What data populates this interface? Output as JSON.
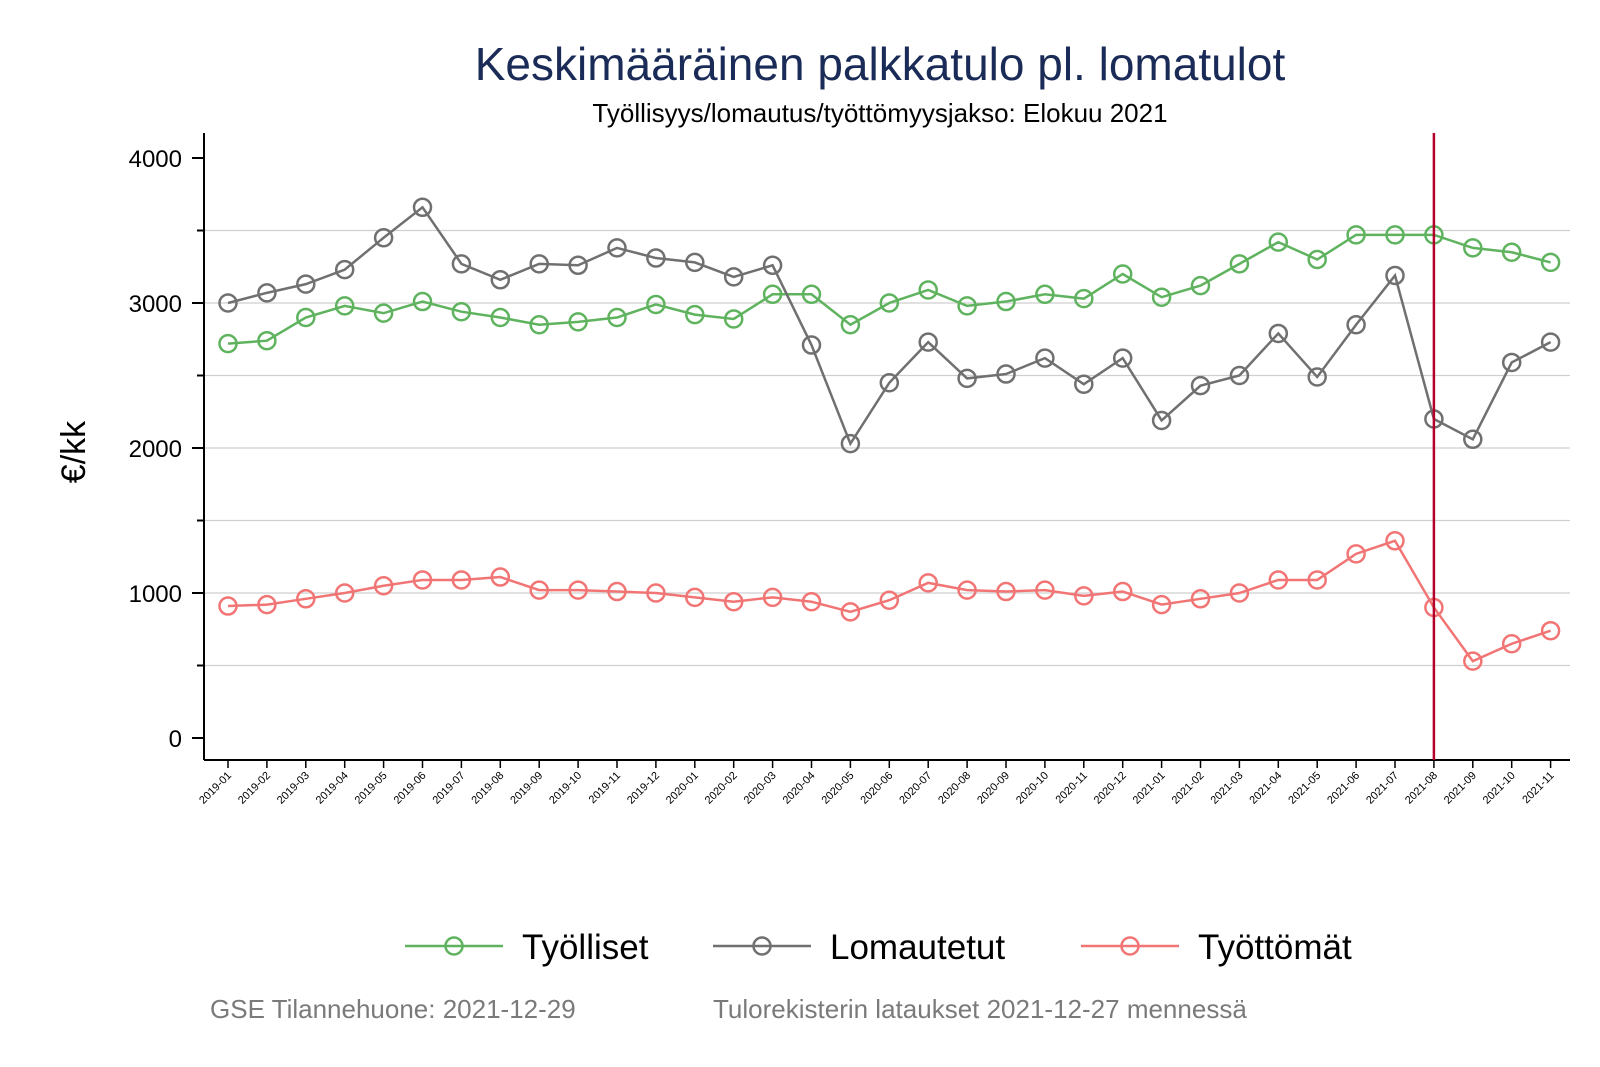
{
  "chart_data": {
    "type": "line",
    "title": "Keskimääräinen palkkatulo pl. lomatulot",
    "subtitle": "Työllisyys/lomautus/työttömyysjakso: Elokuu 2021",
    "ylabel": "€/kk",
    "ylim": [
      -150,
      4150
    ],
    "yticks": [
      0,
      1000,
      2000,
      3000,
      4000
    ],
    "grid": true,
    "legend_position": "bottom",
    "reference_line": {
      "x": "2021-08",
      "color": "#b2002a"
    },
    "categories": [
      "2019-01",
      "2019-02",
      "2019-03",
      "2019-04",
      "2019-05",
      "2019-06",
      "2019-07",
      "2019-08",
      "2019-09",
      "2019-10",
      "2019-11",
      "2019-12",
      "2020-01",
      "2020-02",
      "2020-03",
      "2020-04",
      "2020-05",
      "2020-06",
      "2020-07",
      "2020-08",
      "2020-09",
      "2020-10",
      "2020-11",
      "2020-12",
      "2021-01",
      "2021-02",
      "2021-03",
      "2021-04",
      "2021-05",
      "2021-06",
      "2021-07",
      "2021-08",
      "2021-09",
      "2021-10",
      "2021-11"
    ],
    "series": [
      {
        "name": "Työlliset",
        "color": "#5fb35f",
        "values": [
          2720,
          2740,
          2900,
          2980,
          2930,
          3010,
          2940,
          2900,
          2850,
          2870,
          2900,
          2990,
          2920,
          2890,
          3060,
          3060,
          2850,
          3000,
          3090,
          2980,
          3010,
          3060,
          3030,
          3200,
          3040,
          3120,
          3270,
          3420,
          3300,
          3470,
          3470,
          3470,
          3380,
          3350,
          3280
        ]
      },
      {
        "name": "Lomautetut",
        "color": "#707070",
        "values": [
          3000,
          3070,
          3130,
          3230,
          3450,
          3660,
          3270,
          3160,
          3270,
          3260,
          3380,
          3310,
          3280,
          3180,
          3260,
          2710,
          2030,
          2450,
          2730,
          2480,
          2510,
          2620,
          2440,
          2620,
          2190,
          2430,
          2500,
          2790,
          2490,
          2850,
          3190,
          2200,
          2060,
          2590,
          2730
        ]
      },
      {
        "name": "Työttömät",
        "color": "#f27575",
        "values": [
          910,
          920,
          960,
          1000,
          1050,
          1090,
          1090,
          1110,
          1020,
          1020,
          1010,
          1000,
          970,
          940,
          970,
          940,
          870,
          950,
          1070,
          1020,
          1010,
          1020,
          980,
          1010,
          920,
          960,
          1000,
          1090,
          1090,
          1270,
          1360,
          900,
          530,
          650,
          740
        ]
      }
    ]
  },
  "footer": {
    "left": "GSE Tilannehuone: 2021-12-29",
    "right": "Tulorekisterin lataukset 2021-12-27 mennessä"
  }
}
